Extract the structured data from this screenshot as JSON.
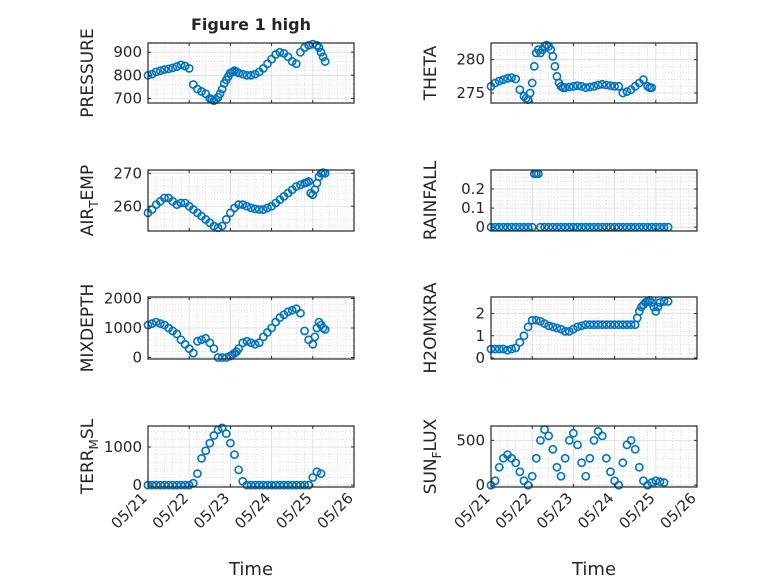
{
  "figure": {
    "title": "Figure 1 high",
    "xlabel": "Time",
    "x_tick_labels": [
      "05/21",
      "05/22",
      "05/23",
      "05/24",
      "05/25",
      "05/26"
    ]
  },
  "colors": {
    "marker": "#0072BD",
    "axis": "#262626",
    "grid": "#c8c8c8"
  },
  "chart_data": [
    {
      "type": "scatter",
      "id": "pressure",
      "ylabel": "PRESSURE",
      "ylabel_sub": null,
      "ylim": [
        680,
        940
      ],
      "yticks": [
        700,
        800,
        900
      ],
      "ytick_labels": [
        "700",
        "800",
        "900"
      ],
      "xlim": [
        0,
        5
      ],
      "xtick_labels_shown": false,
      "x": [
        0,
        0.1,
        0.2,
        0.3,
        0.4,
        0.5,
        0.6,
        0.7,
        0.8,
        0.9,
        1.0,
        1.1,
        1.2,
        1.3,
        1.4,
        1.5,
        1.55,
        1.6,
        1.65,
        1.7,
        1.75,
        1.8,
        1.85,
        1.9,
        1.95,
        2.0,
        2.05,
        2.1,
        2.15,
        2.2,
        2.3,
        2.4,
        2.5,
        2.6,
        2.7,
        2.8,
        2.9,
        3.0,
        3.1,
        3.2,
        3.3,
        3.4,
        3.5,
        3.6,
        3.7,
        3.8,
        3.9,
        4.0,
        4.1,
        4.15,
        4.2,
        4.25,
        4.3
      ],
      "y": [
        800,
        805,
        815,
        820,
        825,
        828,
        832,
        838,
        845,
        840,
        830,
        760,
        740,
        730,
        720,
        700,
        695,
        690,
        695,
        705,
        720,
        740,
        765,
        780,
        795,
        810,
        815,
        820,
        815,
        810,
        805,
        800,
        800,
        805,
        815,
        830,
        850,
        870,
        890,
        900,
        895,
        880,
        860,
        850,
        900,
        920,
        930,
        935,
        930,
        920,
        900,
        880,
        860
      ]
    },
    {
      "type": "scatter",
      "id": "theta",
      "ylabel": "THETA",
      "ylabel_sub": null,
      "ylim": [
        273.5,
        282.5
      ],
      "yticks": [
        275,
        280
      ],
      "ytick_labels": [
        "275",
        "280"
      ],
      "xlim": [
        0,
        5
      ],
      "xtick_labels_shown": false,
      "x": [
        0,
        0.1,
        0.2,
        0.3,
        0.4,
        0.5,
        0.6,
        0.7,
        0.8,
        0.85,
        0.9,
        0.95,
        1.0,
        1.05,
        1.1,
        1.15,
        1.2,
        1.25,
        1.3,
        1.35,
        1.4,
        1.45,
        1.5,
        1.55,
        1.6,
        1.65,
        1.7,
        1.75,
        1.8,
        1.9,
        2.0,
        2.1,
        2.2,
        2.3,
        2.4,
        2.5,
        2.6,
        2.7,
        2.8,
        2.9,
        3.0,
        3.1,
        3.2,
        3.3,
        3.4,
        3.5,
        3.6,
        3.7,
        3.8,
        3.85,
        3.9
      ],
      "y": [
        276,
        276.5,
        276.8,
        277,
        277.2,
        277.3,
        277.1,
        275.5,
        274.5,
        274.2,
        274,
        275,
        276.5,
        279,
        281,
        281.5,
        281,
        281.5,
        282,
        282.2,
        282,
        281.5,
        280.5,
        279,
        277.5,
        276.5,
        276,
        275.8,
        275.8,
        275.9,
        276,
        276.1,
        276,
        275.8,
        275.9,
        276,
        276.2,
        276.3,
        276.2,
        276.1,
        276,
        276,
        275,
        275.2,
        275.5,
        276,
        276.5,
        277,
        276,
        275.8,
        275.8
      ]
    },
    {
      "type": "scatter",
      "id": "air_temp",
      "ylabel": "AIR",
      "ylabel_sub": "T",
      "ylabel_suffix": "EMP",
      "ylim": [
        252.5,
        271
      ],
      "yticks": [
        260,
        270
      ],
      "ytick_labels": [
        "260",
        "270"
      ],
      "xlim": [
        0,
        5
      ],
      "xtick_labels_shown": false,
      "x": [
        0,
        0.1,
        0.2,
        0.3,
        0.4,
        0.5,
        0.6,
        0.7,
        0.8,
        0.9,
        1.0,
        1.1,
        1.2,
        1.3,
        1.4,
        1.5,
        1.6,
        1.7,
        1.8,
        1.9,
        2.0,
        2.1,
        2.2,
        2.3,
        2.4,
        2.5,
        2.6,
        2.7,
        2.8,
        2.9,
        3.0,
        3.1,
        3.2,
        3.3,
        3.4,
        3.5,
        3.6,
        3.7,
        3.8,
        3.85,
        3.9,
        3.95,
        4.0,
        4.05,
        4.1,
        4.15,
        4.2,
        4.25,
        4.3
      ],
      "y": [
        258,
        259,
        260.5,
        261.5,
        262.5,
        262.5,
        261.5,
        260.5,
        261,
        261,
        260,
        259,
        258,
        257,
        256,
        255,
        254,
        253.5,
        254,
        256,
        258,
        259.5,
        260.5,
        260.5,
        260,
        259.5,
        259.2,
        259,
        259,
        259.5,
        260,
        261,
        262,
        263,
        264,
        265,
        266,
        266.5,
        267,
        267.2,
        267.5,
        264,
        263.5,
        265,
        267,
        269,
        270,
        270.2,
        270
      ]
    },
    {
      "type": "scatter",
      "id": "rainfall",
      "ylabel": "RAINFALL",
      "ylabel_sub": null,
      "ylim": [
        -0.02,
        0.3
      ],
      "yticks": [
        0,
        0.1,
        0.2
      ],
      "ytick_labels": [
        "0",
        "0.1",
        "0.2"
      ],
      "xlim": [
        0,
        5
      ],
      "xtick_labels_shown": false,
      "x": [
        0,
        0.1,
        0.2,
        0.3,
        0.4,
        0.5,
        0.6,
        0.7,
        0.8,
        0.9,
        1.0,
        1.05,
        1.1,
        1.15,
        1.2,
        1.3,
        1.4,
        1.5,
        1.6,
        1.7,
        1.8,
        1.9,
        2.0,
        2.1,
        2.2,
        2.3,
        2.4,
        2.5,
        2.6,
        2.7,
        2.8,
        2.9,
        3.0,
        3.1,
        3.2,
        3.3,
        3.4,
        3.5,
        3.6,
        3.7,
        3.8,
        3.9,
        4.0,
        4.1,
        4.2,
        4.3
      ],
      "y": [
        0,
        0,
        0,
        0,
        0,
        0,
        0,
        0,
        0,
        0,
        0,
        0.28,
        0.28,
        0.28,
        0,
        0,
        0,
        0,
        0,
        0,
        0,
        0,
        0,
        0,
        0,
        0,
        0,
        0,
        0,
        0,
        0,
        0,
        0,
        0,
        0,
        0,
        0,
        0,
        0,
        0,
        0,
        0,
        0,
        0,
        0,
        0
      ]
    },
    {
      "type": "scatter",
      "id": "mixdepth",
      "ylabel": "MIXDEPTH",
      "ylabel_sub": null,
      "ylim": [
        -50,
        2050
      ],
      "yticks": [
        0,
        1000,
        2000
      ],
      "ytick_labels": [
        "0",
        "1000",
        "2000"
      ],
      "xlim": [
        0,
        5
      ],
      "xtick_labels_shown": false,
      "x": [
        0,
        0.1,
        0.2,
        0.3,
        0.4,
        0.5,
        0.6,
        0.7,
        0.8,
        0.9,
        1.0,
        1.1,
        1.2,
        1.3,
        1.4,
        1.5,
        1.6,
        1.7,
        1.8,
        1.9,
        2.0,
        2.05,
        2.1,
        2.15,
        2.2,
        2.3,
        2.4,
        2.5,
        2.6,
        2.7,
        2.8,
        2.9,
        3.0,
        3.1,
        3.2,
        3.3,
        3.4,
        3.5,
        3.6,
        3.7,
        3.8,
        3.9,
        4.0,
        4.05,
        4.1,
        4.15,
        4.2,
        4.25,
        4.3
      ],
      "y": [
        1100,
        1150,
        1200,
        1150,
        1100,
        1000,
        900,
        800,
        600,
        450,
        300,
        150,
        550,
        600,
        650,
        500,
        300,
        0,
        0,
        0,
        50,
        100,
        150,
        200,
        300,
        500,
        550,
        500,
        450,
        500,
        700,
        850,
        1000,
        1200,
        1350,
        1450,
        1550,
        1600,
        1650,
        1500,
        900,
        600,
        450,
        700,
        1000,
        1200,
        1100,
        1000,
        950
      ]
    },
    {
      "type": "scatter",
      "id": "h2omixra",
      "ylabel": "H2OMIXRA",
      "ylabel_sub": null,
      "ylim": [
        -0.05,
        2.75
      ],
      "yticks": [
        0,
        1,
        2
      ],
      "ytick_labels": [
        "0",
        "1",
        "2"
      ],
      "xlim": [
        0,
        5
      ],
      "xtick_labels_shown": false,
      "x": [
        0,
        0.1,
        0.2,
        0.3,
        0.4,
        0.5,
        0.6,
        0.7,
        0.8,
        0.9,
        1.0,
        1.1,
        1.2,
        1.3,
        1.4,
        1.5,
        1.6,
        1.7,
        1.8,
        1.9,
        2.0,
        2.1,
        2.2,
        2.3,
        2.4,
        2.5,
        2.6,
        2.7,
        2.8,
        2.9,
        3.0,
        3.1,
        3.2,
        3.3,
        3.4,
        3.5,
        3.55,
        3.6,
        3.65,
        3.7,
        3.75,
        3.8,
        3.85,
        3.9,
        3.95,
        4.0,
        4.05,
        4.1,
        4.2,
        4.3
      ],
      "y": [
        0.4,
        0.4,
        0.4,
        0.4,
        0.35,
        0.4,
        0.45,
        0.7,
        1.0,
        1.4,
        1.7,
        1.7,
        1.65,
        1.55,
        1.45,
        1.4,
        1.35,
        1.3,
        1.2,
        1.2,
        1.3,
        1.4,
        1.45,
        1.5,
        1.5,
        1.5,
        1.5,
        1.5,
        1.5,
        1.5,
        1.5,
        1.5,
        1.5,
        1.5,
        1.5,
        1.5,
        1.8,
        2.1,
        2.3,
        2.4,
        2.5,
        2.55,
        2.6,
        2.5,
        2.3,
        2.1,
        2.3,
        2.5,
        2.55,
        2.55
      ]
    },
    {
      "type": "scatter",
      "id": "terr_msl",
      "ylabel": "TERR",
      "ylabel_sub": "M",
      "ylabel_suffix": "SL",
      "ylim": [
        -50,
        1550
      ],
      "yticks": [
        0,
        1000
      ],
      "ytick_labels": [
        "0",
        "1000"
      ],
      "xlim": [
        0,
        5
      ],
      "xtick_labels_shown": true,
      "x": [
        0,
        0.1,
        0.2,
        0.3,
        0.4,
        0.5,
        0.6,
        0.7,
        0.8,
        0.9,
        1.0,
        1.1,
        1.2,
        1.3,
        1.4,
        1.5,
        1.6,
        1.7,
        1.8,
        1.9,
        2.0,
        2.1,
        2.2,
        2.3,
        2.4,
        2.5,
        2.6,
        2.7,
        2.8,
        2.9,
        3.0,
        3.1,
        3.2,
        3.3,
        3.4,
        3.5,
        3.6,
        3.7,
        3.8,
        3.9,
        4.0,
        4.1,
        4.2
      ],
      "y": [
        0,
        0,
        0,
        0,
        0,
        0,
        0,
        0,
        0,
        0,
        0,
        50,
        300,
        700,
        900,
        1100,
        1300,
        1450,
        1500,
        1350,
        1100,
        800,
        400,
        100,
        0,
        0,
        0,
        0,
        0,
        0,
        0,
        0,
        0,
        0,
        0,
        0,
        0,
        0,
        0,
        0,
        200,
        350,
        300
      ]
    },
    {
      "type": "scatter",
      "id": "sun_flux",
      "ylabel": "SUN",
      "ylabel_sub": "F",
      "ylabel_suffix": "LUX",
      "ylim": [
        -20,
        660
      ],
      "yticks": [
        0,
        500
      ],
      "ytick_labels": [
        "0",
        "500"
      ],
      "xlim": [
        0,
        5
      ],
      "xtick_labels_shown": true,
      "x": [
        0,
        0.1,
        0.2,
        0.3,
        0.4,
        0.5,
        0.6,
        0.7,
        0.8,
        0.9,
        1.0,
        1.1,
        1.2,
        1.3,
        1.4,
        1.5,
        1.6,
        1.7,
        1.8,
        1.9,
        2.0,
        2.1,
        2.2,
        2.3,
        2.4,
        2.5,
        2.6,
        2.7,
        2.8,
        2.9,
        3.0,
        3.1,
        3.2,
        3.3,
        3.4,
        3.5,
        3.6,
        3.7,
        3.8,
        3.9,
        4.0,
        4.1,
        4.2
      ],
      "y": [
        0,
        50,
        200,
        300,
        340,
        300,
        250,
        150,
        50,
        0,
        100,
        300,
        500,
        620,
        550,
        400,
        200,
        100,
        300,
        500,
        580,
        450,
        250,
        100,
        300,
        500,
        600,
        550,
        300,
        150,
        50,
        0,
        250,
        450,
        500,
        400,
        200,
        50,
        0,
        30,
        50,
        40,
        30
      ]
    }
  ]
}
